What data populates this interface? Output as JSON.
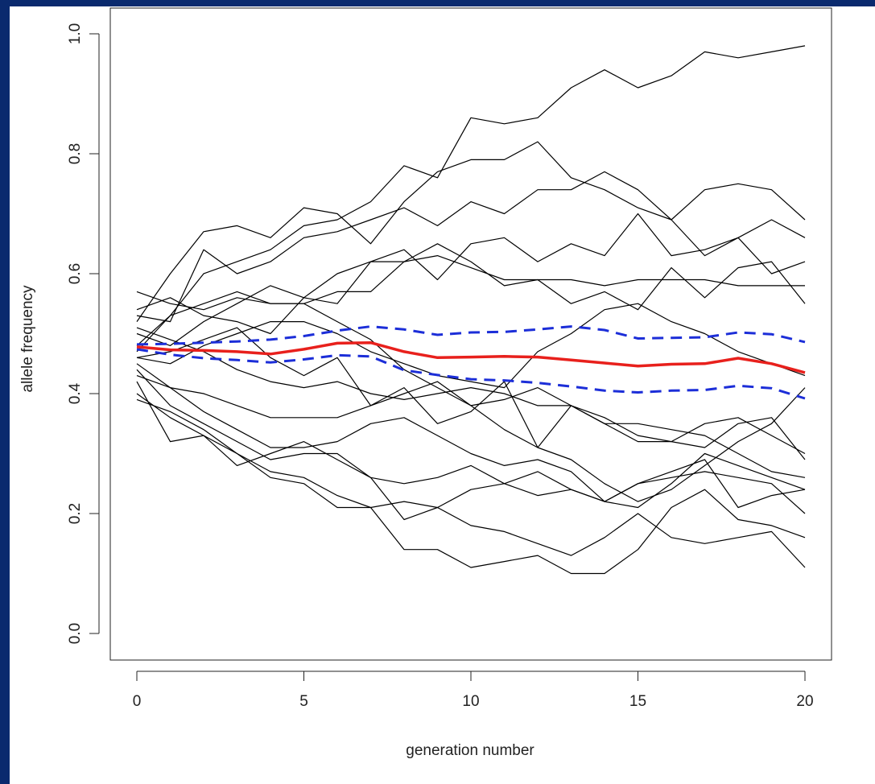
{
  "chart_data": {
    "type": "line",
    "title": "",
    "xlabel": "generation number",
    "ylabel": "allele frequency",
    "xlim": [
      0,
      20
    ],
    "ylim": [
      0,
      1
    ],
    "x_ticks": [
      0,
      5,
      10,
      15,
      20
    ],
    "y_ticks": [
      "0.0",
      "0.2",
      "0.4",
      "0.6",
      "0.8",
      "1.0"
    ],
    "grid": false,
    "legend": "none",
    "colors": {
      "simulations": "#000000",
      "mean": "#e8201c",
      "bounds": "#1c2ed8"
    },
    "x": [
      0,
      1,
      2,
      3,
      4,
      5,
      6,
      7,
      8,
      9,
      10,
      11,
      12,
      13,
      14,
      15,
      16,
      17,
      18,
      19,
      20
    ],
    "series": [
      {
        "values": [
          0.47,
          0.53,
          0.6,
          0.62,
          0.64,
          0.68,
          0.69,
          0.72,
          0.78,
          0.76,
          0.86,
          0.85,
          0.86,
          0.91,
          0.94,
          0.91,
          0.93,
          0.97,
          0.96,
          0.97,
          0.98
        ]
      },
      {
        "values": [
          0.52,
          0.6,
          0.67,
          0.68,
          0.66,
          0.71,
          0.7,
          0.65,
          0.72,
          0.77,
          0.79,
          0.79,
          0.82,
          0.76,
          0.74,
          0.71,
          0.69,
          0.74,
          0.75,
          0.74,
          0.69
        ]
      },
      {
        "values": [
          0.53,
          0.52,
          0.64,
          0.6,
          0.62,
          0.66,
          0.67,
          0.69,
          0.71,
          0.68,
          0.72,
          0.7,
          0.74,
          0.74,
          0.77,
          0.74,
          0.69,
          0.63,
          0.66,
          0.69,
          0.66
        ]
      },
      {
        "values": [
          0.5,
          0.48,
          0.52,
          0.55,
          0.58,
          0.56,
          0.55,
          0.62,
          0.64,
          0.59,
          0.65,
          0.66,
          0.62,
          0.65,
          0.63,
          0.7,
          0.63,
          0.64,
          0.66,
          0.6,
          0.62
        ]
      },
      {
        "values": [
          0.48,
          0.53,
          0.55,
          0.57,
          0.55,
          0.55,
          0.57,
          0.57,
          0.62,
          0.65,
          0.62,
          0.58,
          0.59,
          0.55,
          0.57,
          0.54,
          0.61,
          0.56,
          0.61,
          0.62,
          0.55
        ]
      },
      {
        "values": [
          0.54,
          0.56,
          0.53,
          0.52,
          0.5,
          0.56,
          0.6,
          0.62,
          0.62,
          0.63,
          0.61,
          0.59,
          0.59,
          0.59,
          0.58,
          0.59,
          0.59,
          0.59,
          0.58,
          0.58,
          0.58
        ]
      },
      {
        "values": [
          0.46,
          0.45,
          0.48,
          0.5,
          0.52,
          0.52,
          0.5,
          0.47,
          0.45,
          0.43,
          0.42,
          0.41,
          0.47,
          0.5,
          0.54,
          0.55,
          0.52,
          0.5,
          0.47,
          0.45,
          0.43
        ]
      },
      {
        "values": [
          0.57,
          0.55,
          0.54,
          0.56,
          0.55,
          0.55,
          0.52,
          0.49,
          0.44,
          0.41,
          0.38,
          0.39,
          0.41,
          0.38,
          0.36,
          0.33,
          0.32,
          0.35,
          0.36,
          0.33,
          0.3
        ]
      },
      {
        "values": [
          0.51,
          0.49,
          0.47,
          0.44,
          0.42,
          0.41,
          0.42,
          0.4,
          0.39,
          0.4,
          0.41,
          0.4,
          0.38,
          0.38,
          0.35,
          0.35,
          0.34,
          0.33,
          0.3,
          0.27,
          0.26
        ]
      },
      {
        "values": [
          0.45,
          0.41,
          0.4,
          0.38,
          0.36,
          0.36,
          0.36,
          0.38,
          0.4,
          0.42,
          0.38,
          0.34,
          0.31,
          0.29,
          0.25,
          0.22,
          0.24,
          0.28,
          0.32,
          0.35,
          0.41
        ]
      },
      {
        "values": [
          0.43,
          0.41,
          0.37,
          0.34,
          0.31,
          0.31,
          0.32,
          0.35,
          0.36,
          0.33,
          0.3,
          0.28,
          0.29,
          0.27,
          0.22,
          0.21,
          0.25,
          0.3,
          0.28,
          0.26,
          0.24
        ]
      },
      {
        "values": [
          0.44,
          0.38,
          0.35,
          0.32,
          0.29,
          0.3,
          0.3,
          0.26,
          0.25,
          0.26,
          0.28,
          0.25,
          0.23,
          0.24,
          0.22,
          0.25,
          0.26,
          0.27,
          0.26,
          0.25,
          0.2
        ]
      },
      {
        "values": [
          0.4,
          0.36,
          0.33,
          0.3,
          0.27,
          0.26,
          0.23,
          0.21,
          0.22,
          0.21,
          0.18,
          0.17,
          0.15,
          0.13,
          0.16,
          0.2,
          0.16,
          0.15,
          0.16,
          0.17,
          0.11
        ]
      },
      {
        "values": [
          0.39,
          0.37,
          0.34,
          0.3,
          0.26,
          0.25,
          0.21,
          0.21,
          0.14,
          0.14,
          0.11,
          0.12,
          0.13,
          0.1,
          0.1,
          0.14,
          0.21,
          0.24,
          0.19,
          0.18,
          0.16
        ]
      },
      {
        "values": [
          0.42,
          0.32,
          0.33,
          0.28,
          0.3,
          0.32,
          0.29,
          0.26,
          0.19,
          0.21,
          0.24,
          0.25,
          0.27,
          0.24,
          0.22,
          0.25,
          0.27,
          0.29,
          0.21,
          0.23,
          0.24
        ]
      },
      {
        "values": [
          0.46,
          0.47,
          0.49,
          0.51,
          0.46,
          0.43,
          0.46,
          0.38,
          0.41,
          0.35,
          0.37,
          0.42,
          0.31,
          0.38,
          0.35,
          0.32,
          0.32,
          0.31,
          0.35,
          0.36,
          0.29
        ]
      }
    ],
    "mean": {
      "color": "#e8201c",
      "values": [
        0.478,
        0.473,
        0.472,
        0.47,
        0.466,
        0.474,
        0.484,
        0.485,
        0.47,
        0.46,
        0.461,
        0.462,
        0.461,
        0.456,
        0.451,
        0.446,
        0.449,
        0.45,
        0.459,
        0.45,
        0.435
      ]
    },
    "upper_bound": {
      "color": "#1c2ed8",
      "values": [
        0.482,
        0.483,
        0.485,
        0.487,
        0.49,
        0.496,
        0.505,
        0.512,
        0.507,
        0.498,
        0.502,
        0.503,
        0.507,
        0.512,
        0.506,
        0.492,
        0.493,
        0.494,
        0.502,
        0.499,
        0.486
      ]
    },
    "lower_bound": {
      "color": "#1c2ed8",
      "values": [
        0.474,
        0.465,
        0.459,
        0.456,
        0.452,
        0.457,
        0.464,
        0.462,
        0.439,
        0.431,
        0.424,
        0.422,
        0.418,
        0.412,
        0.405,
        0.402,
        0.405,
        0.406,
        0.413,
        0.409,
        0.392
      ]
    }
  }
}
